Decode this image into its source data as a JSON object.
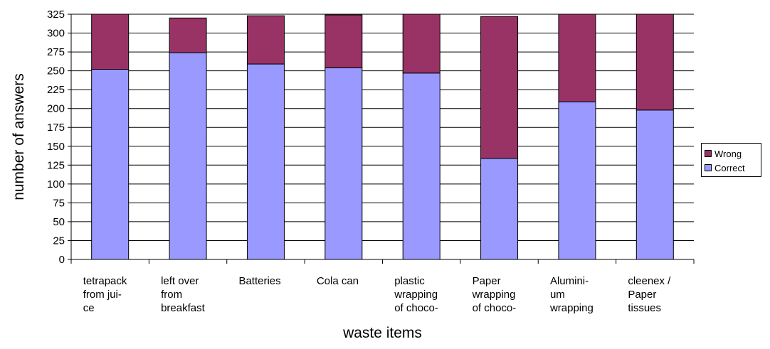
{
  "chart_data": {
    "type": "bar",
    "stacked": true,
    "title": "",
    "xlabel": "waste items",
    "ylabel": "number of answers",
    "ylim": [
      0,
      325
    ],
    "yticks": [
      0,
      25,
      50,
      75,
      100,
      125,
      150,
      175,
      200,
      225,
      250,
      275,
      300,
      325
    ],
    "grid": true,
    "legend_position": "right",
    "categories": [
      [
        "tetrapack",
        "from jui-",
        "ce"
      ],
      [
        "left over",
        "from",
        "breakfast"
      ],
      [
        "Batteries"
      ],
      [
        "Cola can"
      ],
      [
        "plastic",
        "wrapping",
        "of choco-"
      ],
      [
        "Paper",
        "wrapping",
        "of choco-"
      ],
      [
        "Alumini-",
        "um",
        "wrapping"
      ],
      [
        "cleenex /",
        "Paper",
        "tissues"
      ]
    ],
    "series": [
      {
        "name": "Correct",
        "color": "#9999ff",
        "values": [
          252,
          274,
          259,
          254,
          247,
          134,
          209,
          198
        ]
      },
      {
        "name": "Wrong",
        "color": "#993366",
        "values": [
          73,
          46,
          64,
          70,
          78,
          188,
          116,
          127
        ]
      }
    ],
    "legend_order": [
      "Wrong",
      "Correct"
    ]
  }
}
